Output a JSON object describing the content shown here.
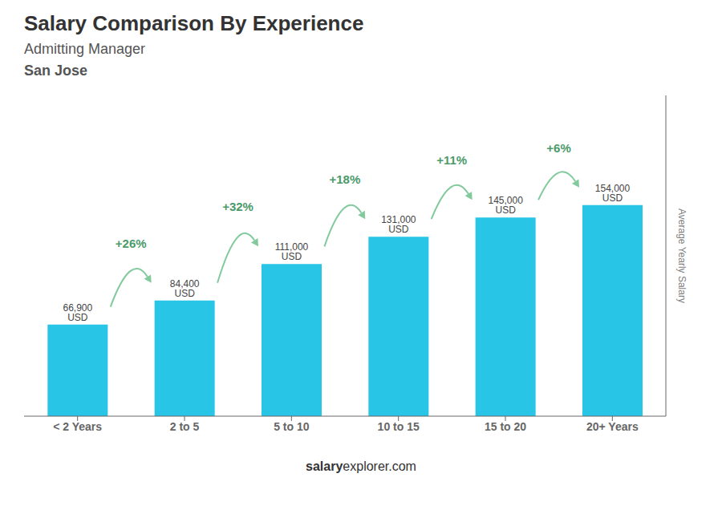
{
  "chart_data": {
    "type": "bar",
    "title": "Salary Comparison By Experience",
    "subtitle": [
      "Admitting Manager",
      "San Jose"
    ],
    "y_label": "Average Yearly Salary",
    "categories": [
      "< 2 Years",
      "2 to 5",
      "5 to 10",
      "10 to 15",
      "15 to 20",
      "20+ Years"
    ],
    "values": [
      66900,
      84400,
      111000,
      131000,
      145000,
      154000
    ],
    "value_labels": [
      "66,900 USD",
      "84,400 USD",
      "111,000 USD",
      "131,000 USD",
      "145,000 USD",
      "154,000 USD"
    ],
    "data_labels": true,
    "annotations": [
      "+26%",
      "+32%",
      "+18%",
      "+11%",
      "+6%"
    ],
    "footer": [
      "salary",
      "explorer.com"
    ],
    "color": "#29c5e6",
    "ylim": [
      0,
      234080
    ],
    "yticks": [],
    "tick_labels": "x",
    "grid": false
  }
}
